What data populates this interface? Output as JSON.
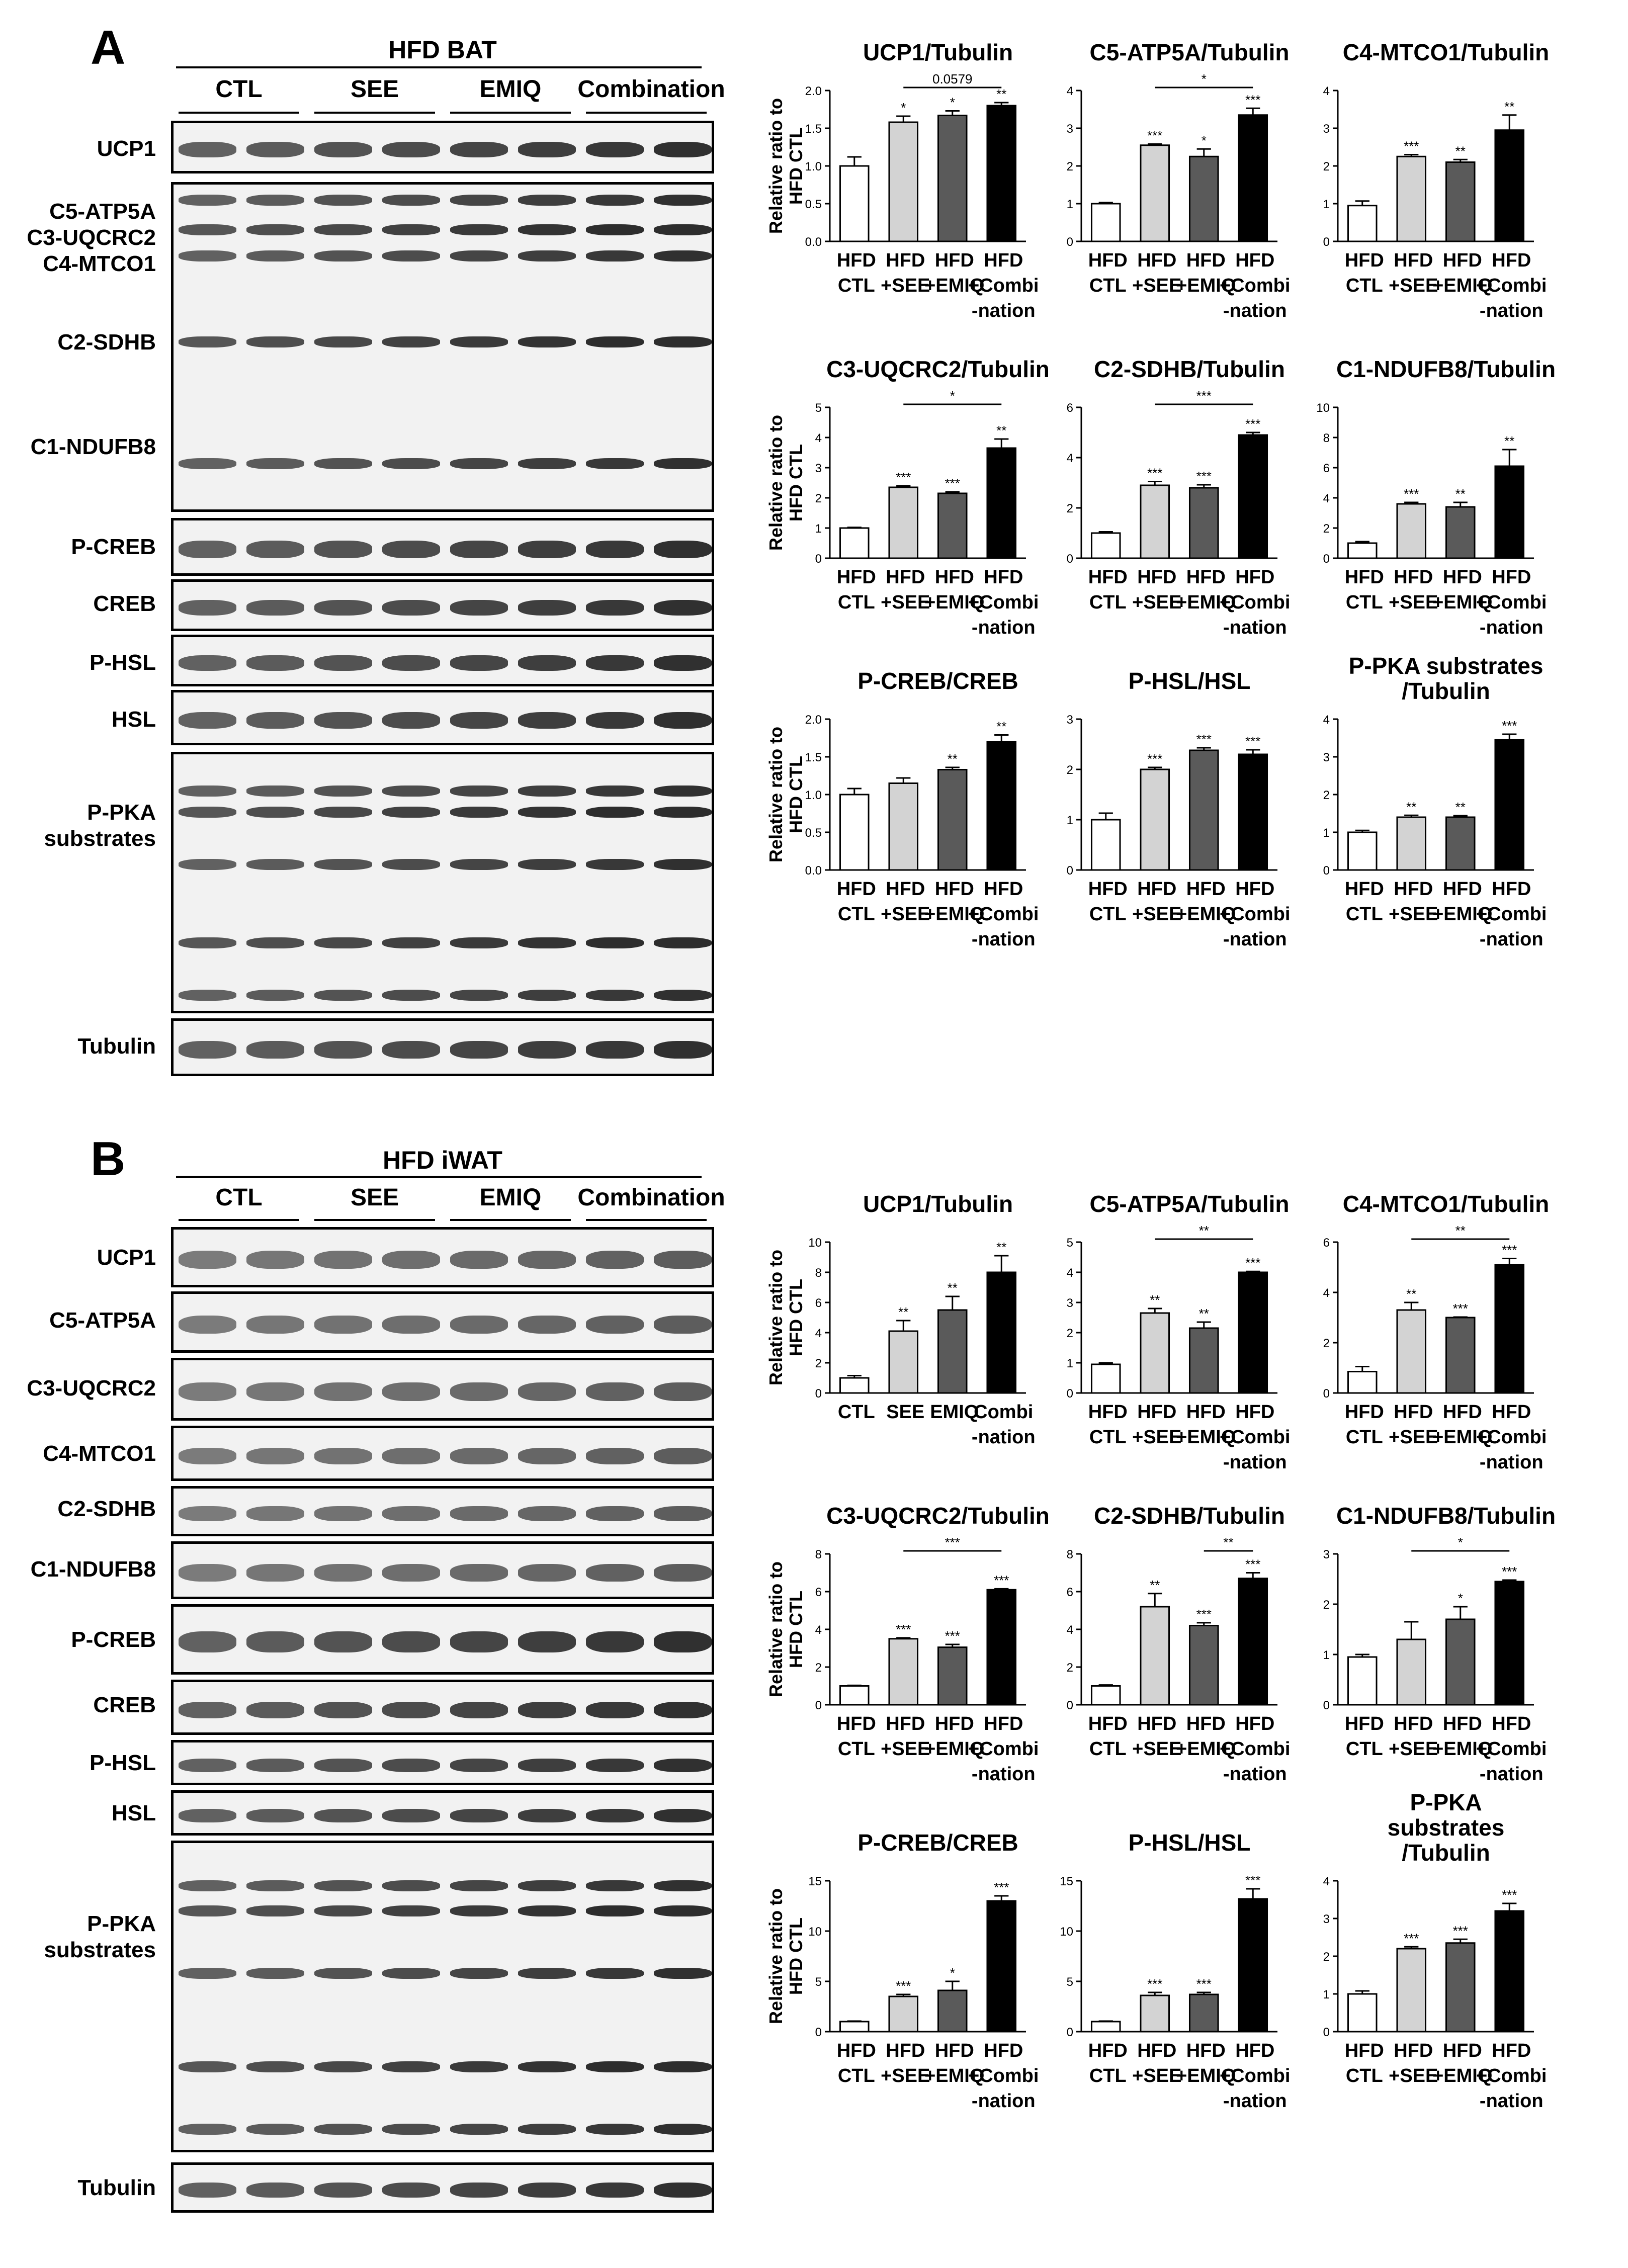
{
  "panels": [
    {
      "letter": "A",
      "tissue": "HFD BAT",
      "groups": [
        "CTL",
        "SEE",
        "EMIQ",
        "Combination"
      ],
      "blots": [
        {
          "label": "UCP1"
        },
        {
          "label": "C5-ATP5A\nC3-UQCRC2\nC4-MTCO1\n\n\nC2-SDHB\n\n\n\nC1-NDUFB8"
        },
        {
          "label": "P-CREB"
        },
        {
          "label": "CREB"
        },
        {
          "label": "P-HSL"
        },
        {
          "label": "HSL"
        },
        {
          "label": "P-PKA\nsubstrates"
        },
        {
          "label": "Tubulin"
        }
      ],
      "ylabel": "Relative ratio to\nHFD CTL",
      "xlabels_standard": [
        "HFD\nCTL",
        "HFD\n+SEE",
        "HFD\n+EMIQ",
        "HFD\n+Combi\n-nation"
      ]
    },
    {
      "letter": "B",
      "tissue": "HFD iWAT",
      "groups": [
        "CTL",
        "SEE",
        "EMIQ",
        "Combination"
      ],
      "blots": [
        {
          "label": "UCP1"
        },
        {
          "label": "C5-ATP5A"
        },
        {
          "label": "C3-UQCRC2"
        },
        {
          "label": "C4-MTCO1"
        },
        {
          "label": "C2-SDHB"
        },
        {
          "label": "C1-NDUFB8"
        },
        {
          "label": "P-CREB"
        },
        {
          "label": "CREB"
        },
        {
          "label": "P-HSL"
        },
        {
          "label": "HSL"
        },
        {
          "label": "P-PKA\nsubstrates"
        },
        {
          "label": "Tubulin"
        }
      ],
      "ylabel": "Relative ratio to\nHFD CTL"
    }
  ],
  "chart_data": [
    {
      "panel": "A",
      "type": "bar",
      "title": "UCP1/Tubulin",
      "categories": [
        "HFD CTL",
        "HFD +SEE",
        "HFD +EMIQ",
        "HFD +Combination"
      ],
      "values": [
        1.0,
        1.58,
        1.67,
        1.8
      ],
      "errors": [
        0.12,
        0.08,
        0.06,
        0.04
      ],
      "sig": [
        "",
        "*",
        "*",
        "**"
      ],
      "ylim": [
        0,
        2
      ],
      "yticks": [
        "0.0",
        "0.5",
        "1.0",
        "1.5",
        "2.0"
      ],
      "bracket": {
        "from": 1,
        "to": 3,
        "label": "0.0579"
      },
      "ylabel": "Relative ratio to HFD CTL"
    },
    {
      "panel": "A",
      "type": "bar",
      "title": "C5-ATP5A/Tubulin",
      "categories": [
        "HFD CTL",
        "HFD +SEE",
        "HFD +EMIQ",
        "HFD +Combination"
      ],
      "values": [
        1.0,
        2.55,
        2.25,
        3.35
      ],
      "errors": [
        0.03,
        0.03,
        0.2,
        0.18
      ],
      "sig": [
        "",
        "***",
        "*",
        "***"
      ],
      "ylim": [
        0,
        4
      ],
      "yticks": [
        "0",
        "1",
        "2",
        "3",
        "4"
      ],
      "bracket": {
        "from": 1,
        "to": 3,
        "label": "*"
      }
    },
    {
      "panel": "A",
      "type": "bar",
      "title": "C4-MTCO1/Tubulin",
      "categories": [
        "HFD CTL",
        "HFD +SEE",
        "HFD +EMIQ",
        "HFD +Combination"
      ],
      "values": [
        0.95,
        2.25,
        2.1,
        2.95
      ],
      "errors": [
        0.12,
        0.05,
        0.07,
        0.4
      ],
      "sig": [
        "",
        "***",
        "**",
        "**"
      ],
      "ylim": [
        0,
        4
      ],
      "yticks": [
        "0",
        "1",
        "2",
        "3",
        "4"
      ]
    },
    {
      "panel": "A",
      "type": "bar",
      "title": "C3-UQCRC2/Tubulin",
      "categories": [
        "HFD CTL",
        "HFD +SEE",
        "HFD +EMIQ",
        "HFD +Combination"
      ],
      "values": [
        1.0,
        2.35,
        2.15,
        3.65
      ],
      "errors": [
        0.02,
        0.05,
        0.05,
        0.3
      ],
      "sig": [
        "",
        "***",
        "***",
        "**"
      ],
      "ylim": [
        0,
        5
      ],
      "yticks": [
        "0",
        "1",
        "2",
        "3",
        "4",
        "5"
      ],
      "bracket": {
        "from": 1,
        "to": 3,
        "label": "*"
      },
      "ylabel": "Relative ratio to HFD CTL"
    },
    {
      "panel": "A",
      "type": "bar",
      "title": "C2-SDHB/Tubulin",
      "categories": [
        "HFD CTL",
        "HFD +SEE",
        "HFD +EMIQ",
        "HFD +Combination"
      ],
      "values": [
        1.0,
        2.9,
        2.8,
        4.9
      ],
      "errors": [
        0.05,
        0.15,
        0.12,
        0.1
      ],
      "sig": [
        "",
        "***",
        "***",
        "***"
      ],
      "ylim": [
        0,
        6
      ],
      "yticks": [
        "0",
        "2",
        "4",
        "6"
      ],
      "bracket": {
        "from": 1,
        "to": 3,
        "label": "***"
      }
    },
    {
      "panel": "A",
      "type": "bar",
      "title": "C1-NDUFB8/Tubulin",
      "categories": [
        "HFD CTL",
        "HFD +SEE",
        "HFD +EMIQ",
        "HFD +Combination"
      ],
      "values": [
        1.0,
        3.6,
        3.4,
        6.1
      ],
      "errors": [
        0.1,
        0.1,
        0.3,
        1.1
      ],
      "sig": [
        "",
        "***",
        "**",
        "**"
      ],
      "ylim": [
        0,
        10
      ],
      "yticks": [
        "0",
        "2",
        "4",
        "6",
        "8",
        "10"
      ]
    },
    {
      "panel": "A",
      "type": "bar",
      "title": "P-CREB/CREB",
      "categories": [
        "HFD CTL",
        "HFD +SEE",
        "HFD +EMIQ",
        "HFD +Combination"
      ],
      "values": [
        1.0,
        1.15,
        1.33,
        1.7
      ],
      "errors": [
        0.08,
        0.07,
        0.03,
        0.09
      ],
      "sig": [
        "",
        "",
        "**",
        "**"
      ],
      "ylim": [
        0,
        2
      ],
      "yticks": [
        "0.0",
        "0.5",
        "1.0",
        "1.5",
        "2.0"
      ],
      "ylabel": "Relative ratio to HFD CTL"
    },
    {
      "panel": "A",
      "type": "bar",
      "title": "P-HSL/HSL",
      "categories": [
        "HFD CTL",
        "HFD +SEE",
        "HFD +EMIQ",
        "HFD +Combination"
      ],
      "values": [
        1.0,
        2.0,
        2.38,
        2.3
      ],
      "errors": [
        0.13,
        0.04,
        0.05,
        0.09
      ],
      "sig": [
        "",
        "***",
        "***",
        "***"
      ],
      "ylim": [
        0,
        3
      ],
      "yticks": [
        "0",
        "1",
        "2",
        "3"
      ]
    },
    {
      "panel": "A",
      "type": "bar",
      "title": "P-PKA substrates\n/Tubulin",
      "categories": [
        "HFD CTL",
        "HFD +SEE",
        "HFD +EMIQ",
        "HFD +Combination"
      ],
      "values": [
        1.0,
        1.4,
        1.4,
        3.45
      ],
      "errors": [
        0.05,
        0.05,
        0.04,
        0.15
      ],
      "sig": [
        "",
        "**",
        "**",
        "***"
      ],
      "ylim": [
        0,
        4
      ],
      "yticks": [
        "0",
        "1",
        "2",
        "3",
        "4"
      ]
    },
    {
      "panel": "B",
      "type": "bar",
      "title": "UCP1/Tubulin",
      "categories": [
        "CTL",
        "SEE",
        "EMIQ",
        "Combination"
      ],
      "values": [
        1.0,
        4.1,
        5.5,
        8.0
      ],
      "errors": [
        0.15,
        0.7,
        0.9,
        1.1
      ],
      "sig": [
        "",
        "**",
        "**",
        "**"
      ],
      "ylim": [
        0,
        10
      ],
      "yticks": [
        "0",
        "2",
        "4",
        "6",
        "8",
        "10"
      ],
      "ylabel": "Relative ratio to HFD CTL"
    },
    {
      "panel": "B",
      "type": "bar",
      "title": "C5-ATP5A/Tubulin",
      "categories": [
        "HFD CTL",
        "HFD +SEE",
        "HFD +EMIQ",
        "HFD +Combination"
      ],
      "values": [
        0.95,
        2.65,
        2.15,
        4.0
      ],
      "errors": [
        0.05,
        0.15,
        0.2,
        0.03
      ],
      "sig": [
        "",
        "**",
        "**",
        "***"
      ],
      "ylim": [
        0,
        5
      ],
      "yticks": [
        "0",
        "1",
        "2",
        "3",
        "4",
        "5"
      ],
      "bracket": {
        "from": 1,
        "to": 3,
        "label": "**"
      }
    },
    {
      "panel": "B",
      "type": "bar",
      "title": "C4-MTCO1/Tubulin",
      "categories": [
        "HFD CTL",
        "HFD +SEE",
        "HFD +EMIQ",
        "HFD +Combination"
      ],
      "values": [
        0.85,
        3.3,
        3.0,
        5.1
      ],
      "errors": [
        0.2,
        0.3,
        0.02,
        0.25
      ],
      "sig": [
        "",
        "**",
        "***",
        "***"
      ],
      "ylim": [
        0,
        6
      ],
      "yticks": [
        "0",
        "2",
        "4",
        "6"
      ],
      "bracket": {
        "from": 1,
        "to": 3,
        "label": "**"
      }
    },
    {
      "panel": "B",
      "type": "bar",
      "title": "C3-UQCRC2/Tubulin",
      "categories": [
        "HFD CTL",
        "HFD +SEE",
        "HFD +EMIQ",
        "HFD +Combination"
      ],
      "values": [
        1.0,
        3.5,
        3.05,
        6.1
      ],
      "errors": [
        0.03,
        0.05,
        0.15,
        0.05
      ],
      "sig": [
        "",
        "***",
        "***",
        "***"
      ],
      "ylim": [
        0,
        8
      ],
      "yticks": [
        "0",
        "2",
        "4",
        "6",
        "8"
      ],
      "bracket": {
        "from": 1,
        "to": 3,
        "label": "***"
      },
      "ylabel": "Relative ratio to HFD CTL"
    },
    {
      "panel": "B",
      "type": "bar",
      "title": "C2-SDHB/Tubulin",
      "categories": [
        "HFD CTL",
        "HFD +SEE",
        "HFD +EMIQ",
        "HFD +Combination"
      ],
      "values": [
        1.0,
        5.2,
        4.2,
        6.7
      ],
      "errors": [
        0.05,
        0.7,
        0.15,
        0.3
      ],
      "sig": [
        "",
        "**",
        "***",
        "***"
      ],
      "ylim": [
        0,
        8
      ],
      "yticks": [
        "0",
        "2",
        "4",
        "6",
        "8"
      ],
      "bracket": {
        "from": 2,
        "to": 3,
        "label": "**"
      }
    },
    {
      "panel": "B",
      "type": "bar",
      "title": "C1-NDUFB8/Tubulin",
      "categories": [
        "HFD CTL",
        "HFD +SEE",
        "HFD +EMIQ",
        "HFD +Combination"
      ],
      "values": [
        0.95,
        1.3,
        1.7,
        2.45
      ],
      "errors": [
        0.05,
        0.35,
        0.25,
        0.03
      ],
      "sig": [
        "",
        "",
        "*",
        "***"
      ],
      "ylim": [
        0,
        3
      ],
      "yticks": [
        "0",
        "1",
        "2",
        "3"
      ],
      "bracket": {
        "from": 1,
        "to": 3,
        "label": "*"
      }
    },
    {
      "panel": "B",
      "type": "bar",
      "title": "P-CREB/CREB",
      "categories": [
        "HFD CTL",
        "HFD +SEE",
        "HFD +EMIQ",
        "HFD +Combination"
      ],
      "values": [
        1.0,
        3.5,
        4.1,
        13.0
      ],
      "errors": [
        0.05,
        0.2,
        0.9,
        0.5
      ],
      "sig": [
        "",
        "***",
        "*",
        "***"
      ],
      "ylim": [
        0,
        15
      ],
      "yticks": [
        "0",
        "5",
        "10",
        "15"
      ],
      "ylabel": "Relative ratio to HFD CTL"
    },
    {
      "panel": "B",
      "type": "bar",
      "title": "P-HSL/HSL",
      "categories": [
        "HFD CTL",
        "HFD +SEE",
        "HFD +EMIQ",
        "HFD +Combination"
      ],
      "values": [
        1.0,
        3.6,
        3.7,
        13.2
      ],
      "errors": [
        0.05,
        0.3,
        0.2,
        1.0
      ],
      "sig": [
        "",
        "***",
        "***",
        "***"
      ],
      "ylim": [
        0,
        15
      ],
      "yticks": [
        "0",
        "5",
        "10",
        "15"
      ]
    },
    {
      "panel": "B",
      "type": "bar",
      "title": "P-PKA\nsubstrates\n/Tubulin",
      "categories": [
        "HFD CTL",
        "HFD +SEE",
        "HFD +EMIQ",
        "HFD +Combination"
      ],
      "values": [
        1.0,
        2.2,
        2.35,
        3.2
      ],
      "errors": [
        0.08,
        0.05,
        0.1,
        0.2
      ],
      "sig": [
        "",
        "***",
        "***",
        "***"
      ],
      "ylim": [
        0,
        4
      ],
      "yticks": [
        "0",
        "1",
        "2",
        "3",
        "4"
      ]
    }
  ]
}
